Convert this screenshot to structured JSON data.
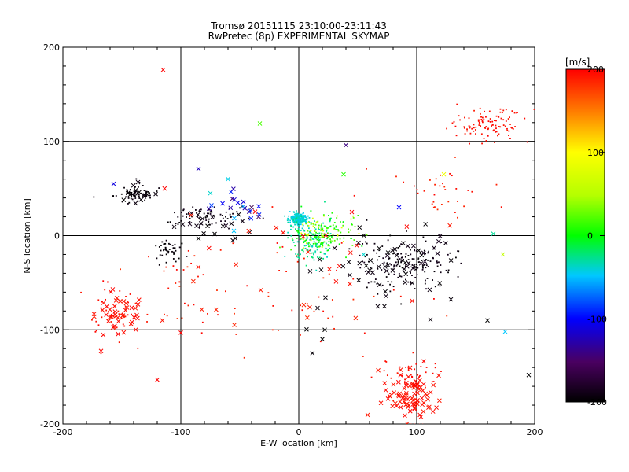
{
  "chart_data": {
    "type": "scatter",
    "title": "Tromsø 20151115 23:10:00-23:11:43",
    "subtitle": "RwPretec (8p) EXPERIMENTAL SKYMAP",
    "xlabel": "E-W location [km]",
    "ylabel": "N-S location [km]",
    "xlim": [
      -200,
      200
    ],
    "ylim": [
      -200,
      200
    ],
    "x_ticks": [
      "-200",
      "-100",
      "0",
      "100",
      "200"
    ],
    "y_ticks": [
      "-200",
      "-100",
      "0",
      "100",
      "200"
    ],
    "grid": true,
    "grid_lines": [
      -100,
      0,
      100
    ],
    "colorbar": {
      "label": "[m/s]",
      "range": [
        -200,
        200
      ],
      "ticks": [
        "-200",
        "-100",
        "0",
        "100",
        "200"
      ],
      "colormap": "rainbow: black(-200) → purple → blue(-100) → cyan → green(0) → yellow(100) → red(200)"
    },
    "markers": {
      "x": "cross",
      "dot": "small dot"
    },
    "clusters": [
      {
        "name": "NE red dots",
        "center": [
          160,
          118
        ],
        "spread": [
          28,
          14
        ],
        "n": 110,
        "v": [
          190,
          200
        ],
        "marker": "dot"
      },
      {
        "name": "NE red scatter",
        "center": [
          120,
          50
        ],
        "spread": [
          30,
          30
        ],
        "n": 35,
        "v": [
          180,
          200
        ],
        "marker": "dot"
      },
      {
        "name": "south red crosses",
        "center": [
          95,
          -170
        ],
        "spread": [
          18,
          22
        ],
        "n": 90,
        "v": [
          190,
          200
        ],
        "marker": "x"
      },
      {
        "name": "south red dots",
        "center": [
          90,
          -150
        ],
        "spread": [
          22,
          25
        ],
        "n": 40,
        "v": [
          190,
          200
        ],
        "marker": "dot"
      },
      {
        "name": "SW red crosses",
        "center": [
          -155,
          -85
        ],
        "spread": [
          20,
          22
        ],
        "n": 45,
        "v": [
          190,
          200
        ],
        "marker": "x"
      },
      {
        "name": "SW red dots",
        "center": [
          -160,
          -80
        ],
        "spread": [
          22,
          25
        ],
        "n": 40,
        "v": [
          190,
          200
        ],
        "marker": "dot"
      },
      {
        "name": "W red scatter",
        "center": [
          -100,
          -60
        ],
        "spread": [
          30,
          40
        ],
        "n": 25,
        "v": [
          180,
          200
        ],
        "marker": "dot"
      },
      {
        "name": "NW black cluster",
        "center": [
          -140,
          45
        ],
        "spread": [
          14,
          8
        ],
        "n": 70,
        "v": [
          -200,
          -190
        ],
        "marker": "dot"
      },
      {
        "name": "NW black crosses",
        "center": [
          -140,
          45
        ],
        "spread": [
          15,
          10
        ],
        "n": 14,
        "v": [
          -200,
          -190
        ],
        "marker": "x"
      },
      {
        "name": "W black band",
        "center": [
          -80,
          20
        ],
        "spread": [
          30,
          10
        ],
        "n": 80,
        "v": [
          -200,
          -185
        ],
        "marker": "dot"
      },
      {
        "name": "W black crosses",
        "center": [
          -80,
          15
        ],
        "spread": [
          30,
          12
        ],
        "n": 20,
        "v": [
          -200,
          -185
        ],
        "marker": "x"
      },
      {
        "name": "W black low",
        "center": [
          -110,
          -15
        ],
        "spread": [
          12,
          8
        ],
        "n": 45,
        "v": [
          -200,
          -190
        ],
        "marker": "dot"
      },
      {
        "name": "E black band",
        "center": [
          90,
          -30
        ],
        "spread": [
          35,
          22
        ],
        "n": 170,
        "v": [
          -200,
          -185
        ],
        "marker": "dot"
      },
      {
        "name": "E black crosses",
        "center": [
          85,
          -25
        ],
        "spread": [
          35,
          25
        ],
        "n": 40,
        "v": [
          -200,
          -185
        ],
        "marker": "x"
      },
      {
        "name": "center cyan",
        "center": [
          0,
          18
        ],
        "spread": [
          6,
          5
        ],
        "n": 220,
        "v": [
          -50,
          -35
        ],
        "marker": "dot"
      },
      {
        "name": "center cyan spread",
        "center": [
          10,
          -5
        ],
        "spread": [
          15,
          20
        ],
        "n": 130,
        "v": [
          -40,
          -20
        ],
        "marker": "dot"
      },
      {
        "name": "center green",
        "center": [
          20,
          0
        ],
        "spread": [
          20,
          18
        ],
        "n": 140,
        "v": [
          -10,
          30
        ],
        "marker": "dot"
      },
      {
        "name": "center yellow",
        "center": [
          25,
          5
        ],
        "spread": [
          22,
          15
        ],
        "n": 35,
        "v": [
          60,
          90
        ],
        "marker": "dot"
      },
      {
        "name": "mid mixed crosses",
        "center": [
          -50,
          30
        ],
        "spread": [
          25,
          15
        ],
        "n": 18,
        "v": [
          -150,
          -30
        ],
        "marker": "x"
      },
      {
        "name": "sparse red",
        "center": [
          0,
          -60
        ],
        "spread": [
          80,
          60
        ],
        "n": 55,
        "v": [
          180,
          200
        ],
        "marker": "dot"
      },
      {
        "name": "sparse red crosses",
        "center": [
          0,
          -40
        ],
        "spread": [
          90,
          70
        ],
        "n": 30,
        "v": [
          185,
          200
        ],
        "marker": "x"
      },
      {
        "name": "sparse black",
        "center": [
          60,
          -60
        ],
        "spread": [
          80,
          50
        ],
        "n": 25,
        "v": [
          -200,
          -190
        ],
        "marker": "x"
      }
    ],
    "points": [
      {
        "x": -115,
        "y": 176,
        "v": 200,
        "m": "x"
      },
      {
        "x": -33,
        "y": 119,
        "v": 20,
        "m": "x"
      },
      {
        "x": 40,
        "y": 96,
        "v": -140,
        "m": "x"
      },
      {
        "x": -85,
        "y": 71,
        "v": -120,
        "m": "x"
      },
      {
        "x": -60,
        "y": 60,
        "v": -45,
        "m": "x"
      },
      {
        "x": -157,
        "y": 55,
        "v": -110,
        "m": "x"
      },
      {
        "x": 38,
        "y": 65,
        "v": 10,
        "m": "x"
      },
      {
        "x": 165,
        "y": 2,
        "v": -30,
        "m": "x"
      },
      {
        "x": 173,
        "y": -20,
        "v": 60,
        "m": "x"
      },
      {
        "x": 175,
        "y": -102,
        "v": -50,
        "m": "x"
      },
      {
        "x": 195,
        "y": -148,
        "v": -200,
        "m": "x"
      },
      {
        "x": 20,
        "y": -110,
        "v": -200,
        "m": "x"
      },
      {
        "x": 22,
        "y": -100,
        "v": -200,
        "m": "x"
      },
      {
        "x": -34,
        "y": 20,
        "v": -150,
        "m": "x"
      },
      {
        "x": -55,
        "y": 5,
        "v": -50,
        "m": "x"
      },
      {
        "x": -75,
        "y": 45,
        "v": -40,
        "m": "x"
      },
      {
        "x": -40,
        "y": 30,
        "v": -160,
        "m": "x"
      },
      {
        "x": 55,
        "y": -20,
        "v": -40,
        "m": "x"
      },
      {
        "x": 123,
        "y": 65,
        "v": 90,
        "m": "x"
      },
      {
        "x": 85,
        "y": 30,
        "v": -100,
        "m": "x"
      },
      {
        "x": -85,
        "y": -3,
        "v": -200,
        "m": "x"
      },
      {
        "x": -100,
        "y": -103,
        "v": 200,
        "m": "x"
      },
      {
        "x": -120,
        "y": -153,
        "v": 200,
        "m": "x"
      },
      {
        "x": 45,
        "y": 25,
        "v": 200,
        "m": "x"
      },
      {
        "x": 160,
        "y": -90,
        "v": -200,
        "m": "x"
      }
    ]
  }
}
